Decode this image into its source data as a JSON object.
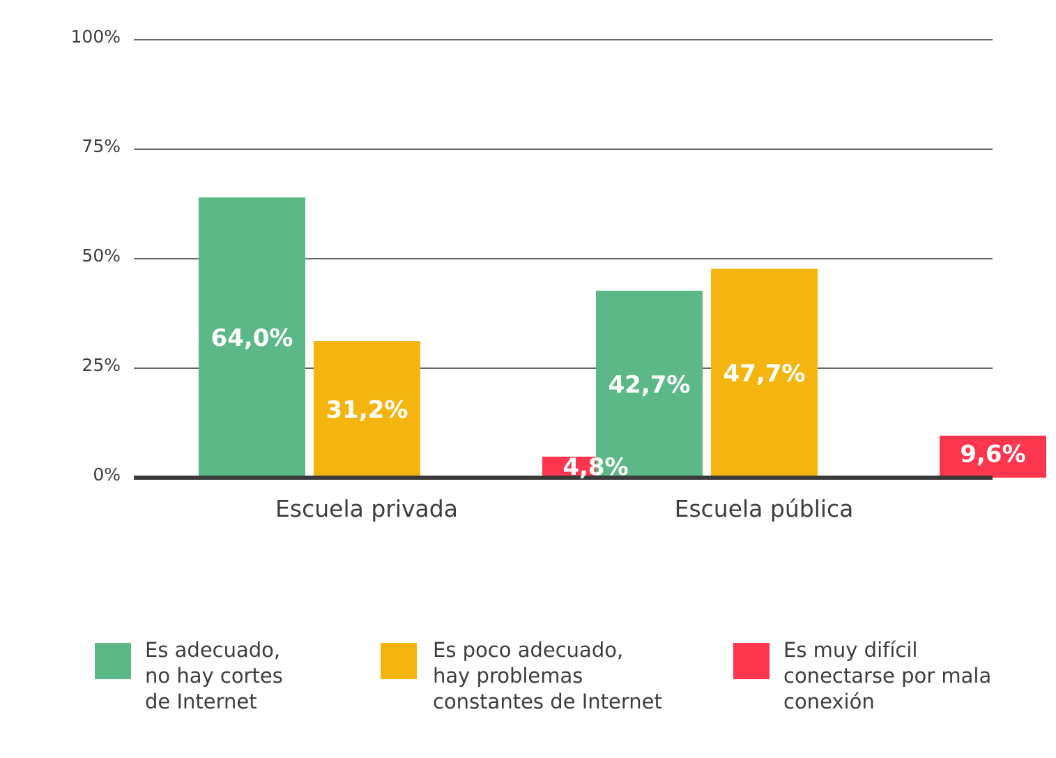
{
  "chart_data": {
    "type": "bar",
    "title": "",
    "xlabel": "",
    "ylabel": "",
    "ylim": [
      0,
      100
    ],
    "yticks": [
      0,
      25,
      50,
      75,
      100
    ],
    "ytick_labels": [
      "0%",
      "25%",
      "50%",
      "75%",
      "100%"
    ],
    "grid": true,
    "legend_position": "bottom",
    "categories": [
      "Escuela privada",
      "Escuela pública"
    ],
    "series": [
      {
        "name": "Es adecuado,\nno hay cortes\nde Internet",
        "color": "#5cb887",
        "values": [
          64.0,
          42.7
        ],
        "labels": [
          "64,0%",
          "42,7%"
        ]
      },
      {
        "name": "Es poco adecuado,\nhay problemas\nconstantes de Internet",
        "color": "#f5b510",
        "values": [
          31.2,
          47.7
        ],
        "labels": [
          "31,2%",
          "47,7%"
        ]
      },
      {
        "name": "Es muy difícil\nconectarse por mala\nconexión",
        "color": "#fd364f",
        "values": [
          4.8,
          9.6
        ],
        "labels": [
          "4,8%",
          "9,6%"
        ]
      }
    ]
  }
}
